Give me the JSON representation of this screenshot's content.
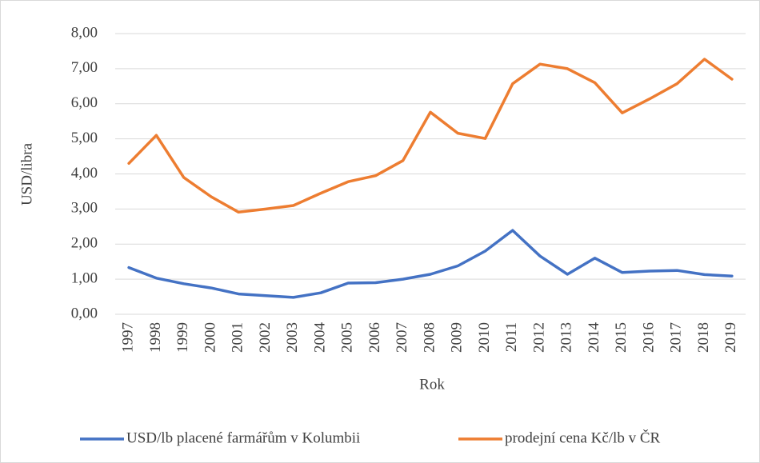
{
  "chart_data": {
    "type": "line",
    "x_label": "Rok",
    "y_label": "USD/libra",
    "categories": [
      "1997",
      "1998",
      "1999",
      "2000",
      "2001",
      "2002",
      "2003",
      "2004",
      "2005",
      "2006",
      "2007",
      "2008",
      "2009",
      "2010",
      "2011",
      "2012",
      "2013",
      "2014",
      "2015",
      "2016",
      "2017",
      "2018",
      "2019"
    ],
    "series": [
      {
        "name": "USD/lb placené farmářům v Kolumbii",
        "color": "#4472c4",
        "values": [
          1.33,
          1.03,
          0.87,
          0.75,
          0.58,
          0.53,
          0.48,
          0.61,
          0.89,
          0.9,
          1.0,
          1.14,
          1.38,
          1.8,
          2.39,
          1.66,
          1.14,
          1.6,
          1.19,
          1.23,
          1.25,
          1.13,
          1.09
        ]
      },
      {
        "name": "prodejní cena Kč/lb v ČR",
        "color": "#ed7d31",
        "values": [
          4.3,
          5.1,
          3.9,
          3.35,
          2.91,
          3.0,
          3.1,
          3.45,
          3.78,
          3.95,
          4.38,
          5.76,
          5.16,
          5.01,
          6.57,
          7.13,
          7.0,
          6.6,
          5.74,
          6.14,
          6.57,
          7.27,
          6.7
        ]
      }
    ],
    "ylim": [
      0,
      8
    ],
    "yticks": [
      {
        "value": 0,
        "label": "0,00"
      },
      {
        "value": 1,
        "label": "1,00"
      },
      {
        "value": 2,
        "label": "2,00"
      },
      {
        "value": 3,
        "label": "3,00"
      },
      {
        "value": 4,
        "label": "4,00"
      },
      {
        "value": 5,
        "label": "5,00"
      },
      {
        "value": 6,
        "label": "6,00"
      },
      {
        "value": 7,
        "label": "7,00"
      },
      {
        "value": 8,
        "label": "8,00"
      }
    ],
    "grid": true,
    "legend": "bottom"
  }
}
